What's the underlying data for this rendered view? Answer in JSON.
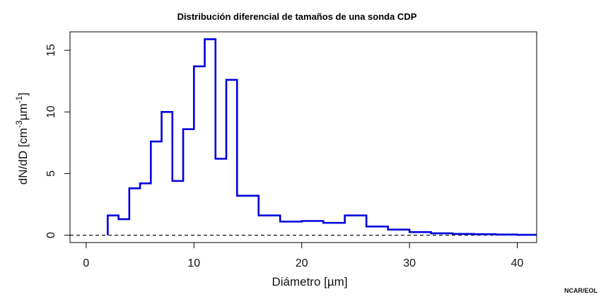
{
  "chart_data": {
    "type": "line",
    "style": "step",
    "title": "Distribución diferencial de tamaños de una sonda CDP",
    "xlabel": "Diámetro [µm]",
    "ylabel_base": "dN/dD [cm",
    "ylabel_sup1": "-3",
    "ylabel_mid": "µm",
    "ylabel_sup2": "-1",
    "ylabel_end": "]",
    "xlim": [
      -1.5,
      41.8
    ],
    "ylim": [
      -0.6,
      16.5
    ],
    "x_ticks": [
      0,
      10,
      20,
      30,
      40
    ],
    "y_ticks": [
      0,
      5,
      10,
      15
    ],
    "reference_line_y": 0,
    "series": [
      {
        "color": "#0000dd",
        "bin_edges": [
          2,
          3,
          4,
          5,
          6,
          7,
          8,
          9,
          10,
          11,
          12,
          13,
          14,
          16,
          18,
          20,
          22,
          24,
          26,
          28,
          30,
          32,
          34,
          36,
          38,
          40,
          41.8
        ],
        "values": [
          1.6,
          1.3,
          3.8,
          4.2,
          7.6,
          10.0,
          4.4,
          8.6,
          13.7,
          15.9,
          6.2,
          12.6,
          3.2,
          1.6,
          1.1,
          1.15,
          1.0,
          1.6,
          0.7,
          0.45,
          0.25,
          0.15,
          0.1,
          0.08,
          0.05,
          0.03
        ]
      }
    ]
  },
  "credit": "NCAR/EOL"
}
